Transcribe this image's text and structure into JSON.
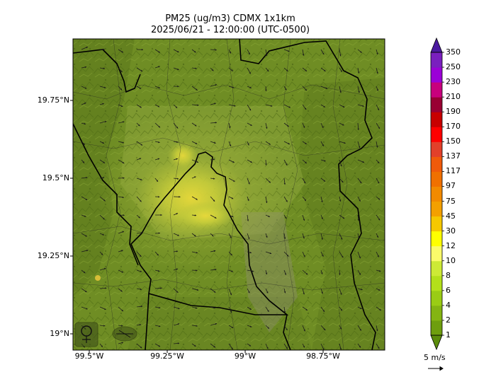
{
  "figure": {
    "title_line1": "PM25 (ug/m3) CDMX 1x1km",
    "title_line2": "2025/06/21 - 12:00:00 (UTC-0500)"
  },
  "map": {
    "lat_ticks": [
      "19.75°N",
      "19.5°N",
      "19.25°N",
      "19°N"
    ],
    "lon_ticks": [
      "99.5°W",
      "99.25°W",
      "99°W",
      "98.75°W"
    ],
    "base_color": "#6f8d24",
    "logos": [
      "sedema-logo-icon",
      "agency-logo-icon"
    ]
  },
  "colorbar": {
    "levels": [
      "1",
      "2",
      "4",
      "6",
      "8",
      "10",
      "12",
      "30",
      "45",
      "75",
      "97",
      "117",
      "137",
      "150",
      "170",
      "190",
      "210",
      "230",
      "250",
      "350"
    ],
    "colors": [
      "#5b8c0c",
      "#6e9e0e",
      "#84b412",
      "#9acc14",
      "#b3e01a",
      "#cdea36",
      "#fbfb6a",
      "#ffff00",
      "#f5c800",
      "#f3a000",
      "#f28a00",
      "#f07000",
      "#f05a0a",
      "#e2402a",
      "#ff0000",
      "#c80000",
      "#990033",
      "#c8007d",
      "#9b00d7",
      "#7a1fbf",
      "#4b1aa0"
    ],
    "extend": "both"
  },
  "wind": {
    "reference_label": "5 m/s"
  }
}
